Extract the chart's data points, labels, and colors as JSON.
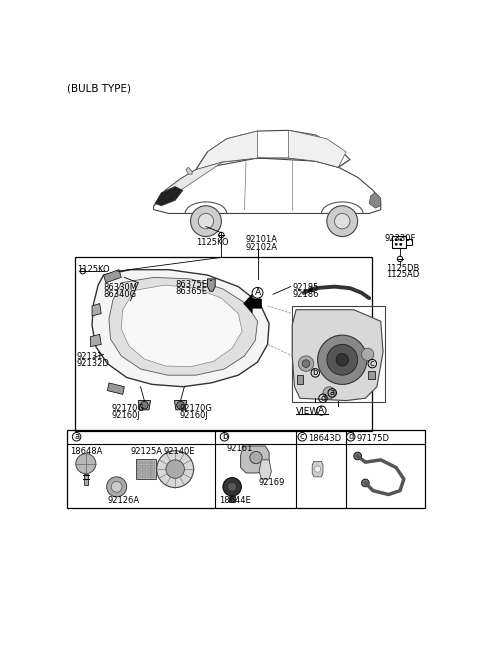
{
  "bg_color": "#ffffff",
  "text_color": "#000000",
  "font_size": 7,
  "labels": {
    "bulb_type": "(BULB TYPE)",
    "1125KO_top": "1125KO",
    "92101A": "92101A",
    "92102A": "92102A",
    "92330F": "92330F",
    "1125KO_left": "1125KO",
    "86375E": "86375E",
    "86365E": "86365E",
    "86330M": "86330M",
    "86340G": "86340G",
    "92185": "92185",
    "92186": "92186",
    "1125DB": "1125DB",
    "1125AD": "1125AD",
    "92131": "92131",
    "92132D": "92132D",
    "92170G_left": "92170G",
    "92160J_left": "92160J",
    "92170G_right": "92170G",
    "92160J_right": "92160J",
    "VIEW_A": "VIEW",
    "92140E": "92140E",
    "92125A": "92125A",
    "18648A": "18648A",
    "92126A": "92126A",
    "92161": "92161",
    "92169": "92169",
    "18644E": "18644E",
    "18643D": "18643D",
    "97175D": "97175D"
  }
}
